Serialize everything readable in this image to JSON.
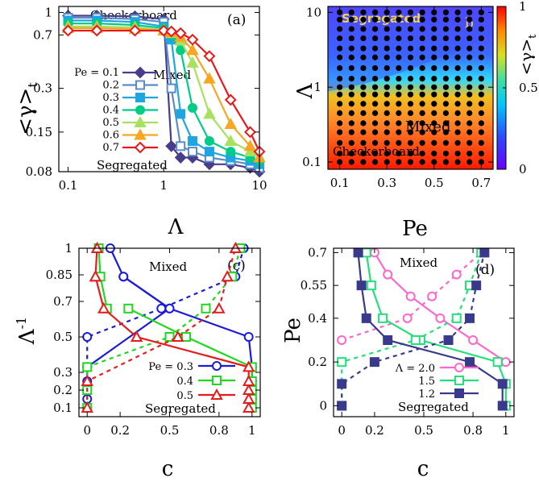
{
  "chart_data": [
    {
      "id": "a",
      "type": "line",
      "panel_label": "(a)",
      "xscale": "log",
      "yscale": "log",
      "xlim": [
        0.08,
        10
      ],
      "ylim": [
        0.08,
        1.1
      ],
      "xlabel": "Λ",
      "ylabel": "<γ>t",
      "xticks": [
        {
          "v": 0.1,
          "t": "0.1"
        },
        {
          "v": 1,
          "t": "1"
        },
        {
          "v": 10,
          "t": "10"
        }
      ],
      "yticks": [
        {
          "v": 1,
          "t": "1"
        },
        {
          "v": 0.7,
          "t": "0.7"
        },
        {
          "v": 0.3,
          "t": "0.3"
        },
        {
          "v": 0.15,
          "t": "0.15"
        },
        {
          "v": 0.08,
          "t": "0.08"
        }
      ],
      "annotations": [
        "Checkerboard",
        "Mixed",
        "Segregated"
      ],
      "x": [
        0.1,
        0.2,
        0.5,
        1.0,
        1.2,
        1.5,
        2.0,
        3.0,
        5.0,
        8.0,
        10.0
      ],
      "series": [
        {
          "name": "Pe = 0.1",
          "color": "#483d8b",
          "marker": "diamond",
          "fill": true,
          "values": [
            0.95,
            0.95,
            0.94,
            0.9,
            0.12,
            0.1,
            0.1,
            0.09,
            0.09,
            0.085,
            0.08
          ]
        },
        {
          "name": "0.2",
          "color": "#5b8cc8",
          "marker": "square",
          "fill": false,
          "values": [
            0.92,
            0.92,
            0.9,
            0.86,
            0.3,
            0.12,
            0.11,
            0.1,
            0.095,
            0.09,
            0.085
          ]
        },
        {
          "name": "0.3",
          "color": "#1fa5e0",
          "marker": "square",
          "fill": true,
          "values": [
            0.88,
            0.88,
            0.86,
            0.8,
            0.65,
            0.2,
            0.13,
            0.11,
            0.1,
            0.095,
            0.09
          ]
        },
        {
          "name": "0.4",
          "color": "#00cc88",
          "marker": "circle",
          "fill": true,
          "values": [
            0.84,
            0.84,
            0.82,
            0.78,
            0.7,
            0.55,
            0.22,
            0.13,
            0.11,
            0.1,
            0.095
          ]
        },
        {
          "name": "0.5",
          "color": "#a8e060",
          "marker": "triangle",
          "fill": true,
          "values": [
            0.8,
            0.8,
            0.79,
            0.76,
            0.72,
            0.64,
            0.45,
            0.2,
            0.13,
            0.11,
            0.1
          ]
        },
        {
          "name": "0.6",
          "color": "#f5a623",
          "marker": "triangle",
          "fill": true,
          "values": [
            0.78,
            0.78,
            0.77,
            0.75,
            0.73,
            0.68,
            0.55,
            0.35,
            0.17,
            0.12,
            0.1
          ]
        },
        {
          "name": "0.7",
          "color": "#e8191b",
          "marker": "diamond",
          "fill": false,
          "values": [
            0.75,
            0.75,
            0.75,
            0.75,
            0.74,
            0.72,
            0.65,
            0.5,
            0.25,
            0.15,
            0.11
          ]
        }
      ]
    },
    {
      "id": "b",
      "type": "heatmap",
      "panel_label": "b",
      "xscale": "linear",
      "yscale": "log",
      "xlim": [
        0.05,
        0.75
      ],
      "ylim": [
        0.08,
        12
      ],
      "xlabel": "Pe",
      "ylabel": "Λ",
      "colorbar_label": "<γ>t",
      "colorbar_ticks": [
        {
          "v": 1,
          "t": "1"
        },
        {
          "v": 0.5,
          "t": "0.5"
        },
        {
          "v": 0,
          "t": "0"
        }
      ],
      "xticks": [
        {
          "v": 0.1,
          "t": "0.1"
        },
        {
          "v": 0.3,
          "t": "0.3"
        },
        {
          "v": 0.5,
          "t": "0.5"
        },
        {
          "v": 0.7,
          "t": "0.7"
        }
      ],
      "yticks": [
        {
          "v": 10,
          "t": "10"
        },
        {
          "v": 1,
          "t": "1"
        },
        {
          "v": 0.1,
          "t": "0.1"
        }
      ],
      "annotations": [
        "Segregated",
        "Mixed",
        "Checkerboard"
      ],
      "grid_pe": [
        0.1,
        0.15,
        0.2,
        0.25,
        0.3,
        0.35,
        0.4,
        0.45,
        0.5,
        0.55,
        0.6,
        0.65,
        0.7
      ],
      "grid_lambda": [
        0.1,
        0.13,
        0.18,
        0.25,
        0.33,
        0.45,
        0.6,
        0.8,
        1.0,
        1.3,
        1.8,
        2.5,
        3.3,
        4.5,
        6.0,
        8.0,
        10.0
      ]
    },
    {
      "id": "c",
      "type": "line",
      "panel_label": "(c)",
      "xscale": "linear",
      "yscale": "linear",
      "xlim": [
        -0.05,
        1.05
      ],
      "ylim": [
        0.05,
        1.0
      ],
      "xlabel": "c",
      "ylabel": "Λ-1",
      "xticks": [
        {
          "v": 0,
          "t": "0"
        },
        {
          "v": 0.2,
          "t": "0.2"
        },
        {
          "v": 0.5,
          "t": "0.5"
        },
        {
          "v": 0.8,
          "t": "0.8"
        },
        {
          "v": 1,
          "t": "1"
        }
      ],
      "yticks": [
        {
          "v": 1,
          "t": "1"
        },
        {
          "v": 0.85,
          "t": "0.85"
        },
        {
          "v": 0.7,
          "t": "0.7"
        },
        {
          "v": 0.5,
          "t": "0.5"
        },
        {
          "v": 0.3,
          "t": "0.3"
        },
        {
          "v": 0.2,
          "t": "0.2"
        },
        {
          "v": 0.1,
          "t": "0.1"
        }
      ],
      "annotations": [
        "Mixed",
        "Segregated"
      ],
      "series": [
        {
          "name": "Pe = 0.3",
          "color": "#1a1ad8",
          "marker": "circle",
          "solid": [
            [
              0.0,
              0.1
            ],
            [
              0.0,
              0.15
            ],
            [
              0.0,
              0.2
            ],
            [
              0.0,
              0.25
            ],
            [
              0.0,
              0.33
            ],
            [
              0.5,
              0.66
            ],
            [
              0.22,
              0.84
            ],
            [
              0.14,
              1.0
            ]
          ],
          "solid_right": [
            [
              1.0,
              0.1
            ],
            [
              1.0,
              0.15
            ],
            [
              1.0,
              0.2
            ],
            [
              1.0,
              0.25
            ],
            [
              1.0,
              0.33
            ],
            [
              0.98,
              0.5
            ],
            [
              0.5,
              0.66
            ],
            [
              0.22,
              0.84
            ]
          ],
          "dashed": [
            [
              0.0,
              0.33
            ],
            [
              0.0,
              0.5
            ],
            [
              0.45,
              0.66
            ],
            [
              0.9,
              0.84
            ],
            [
              0.95,
              1.0
            ]
          ]
        },
        {
          "name": "0.4",
          "color": "#1fd81f",
          "marker": "square",
          "solid": [
            [
              0.12,
              0.66
            ],
            [
              0.08,
              0.84
            ],
            [
              0.07,
              1.0
            ]
          ],
          "solid_right": [
            [
              1.0,
              0.1
            ],
            [
              1.0,
              0.15
            ],
            [
              1.0,
              0.2
            ],
            [
              1.0,
              0.25
            ],
            [
              1.0,
              0.33
            ],
            [
              0.6,
              0.5
            ],
            [
              0.25,
              0.66
            ]
          ],
          "dashed": [
            [
              0.0,
              0.1
            ],
            [
              0.0,
              0.2
            ],
            [
              0.0,
              0.33
            ],
            [
              0.5,
              0.5
            ],
            [
              0.72,
              0.66
            ],
            [
              0.88,
              0.84
            ],
            [
              0.93,
              1.0
            ]
          ]
        },
        {
          "name": "0.5",
          "color": "#e51c1c",
          "marker": "triangle",
          "solid": [
            [
              0.05,
              0.84
            ],
            [
              0.06,
              1.0
            ]
          ],
          "solid_right": [
            [
              0.98,
              0.1
            ],
            [
              0.98,
              0.15
            ],
            [
              0.98,
              0.2
            ],
            [
              0.98,
              0.25
            ],
            [
              0.98,
              0.33
            ],
            [
              0.3,
              0.5
            ],
            [
              0.1,
              0.66
            ],
            [
              0.05,
              0.84
            ]
          ],
          "dashed": [
            [
              0.0,
              0.1
            ],
            [
              0.0,
              0.25
            ],
            [
              0.55,
              0.5
            ],
            [
              0.8,
              0.66
            ],
            [
              0.85,
              0.84
            ],
            [
              0.9,
              1.0
            ]
          ]
        }
      ]
    },
    {
      "id": "d",
      "type": "line",
      "panel_label": "(d)",
      "xscale": "linear",
      "yscale": "linear",
      "xlim": [
        -0.05,
        1.05
      ],
      "ylim": [
        -0.05,
        0.72
      ],
      "xlabel": "c",
      "ylabel": "Pe",
      "xticks": [
        {
          "v": 0,
          "t": "0"
        },
        {
          "v": 0.2,
          "t": "0.2"
        },
        {
          "v": 0.5,
          "t": "0.5"
        },
        {
          "v": 0.8,
          "t": "0.8"
        },
        {
          "v": 1,
          "t": "1"
        }
      ],
      "yticks": [
        {
          "v": 0.7,
          "t": "0.7"
        },
        {
          "v": 0.55,
          "t": "0.55"
        },
        {
          "v": 0.4,
          "t": "0.4"
        },
        {
          "v": 0.2,
          "t": "0.2"
        },
        {
          "v": 0,
          "t": "0"
        }
      ],
      "annotations": [
        "Mixed",
        "Segregated"
      ],
      "series": [
        {
          "name": "Λ = 2.0",
          "color": "#ff66cc",
          "marker": "circle",
          "solid": [
            [
              0.2,
              0.7
            ],
            [
              0.28,
              0.6
            ],
            [
              0.42,
              0.5
            ],
            [
              0.6,
              0.4
            ],
            [
              0.8,
              0.3
            ],
            [
              1.0,
              0.2
            ]
          ],
          "dashed": [
            [
              0.0,
              0.3
            ],
            [
              0.4,
              0.4
            ],
            [
              0.55,
              0.5
            ],
            [
              0.7,
              0.6
            ],
            [
              0.85,
              0.7
            ]
          ]
        },
        {
          "name": "1.5",
          "color": "#22e07a",
          "marker": "square",
          "solid": [
            [
              0.15,
              0.7
            ],
            [
              0.18,
              0.55
            ],
            [
              0.25,
              0.4
            ],
            [
              0.48,
              0.3
            ],
            [
              0.95,
              0.2
            ],
            [
              1.0,
              0.1
            ],
            [
              1.0,
              0.0
            ]
          ],
          "dashed": [
            [
              0.0,
              0.0
            ],
            [
              0.0,
              0.2
            ],
            [
              0.45,
              0.3
            ],
            [
              0.7,
              0.4
            ],
            [
              0.78,
              0.55
            ],
            [
              0.85,
              0.7
            ]
          ]
        },
        {
          "name": "1.2",
          "color": "#3a3a8c",
          "marker": "square",
          "solid": [
            [
              0.1,
              0.7
            ],
            [
              0.12,
              0.55
            ],
            [
              0.15,
              0.4
            ],
            [
              0.28,
              0.3
            ],
            [
              0.78,
              0.2
            ],
            [
              0.98,
              0.1
            ],
            [
              0.98,
              0.0
            ]
          ],
          "dashed": [
            [
              0.0,
              0.0
            ],
            [
              0.0,
              0.1
            ],
            [
              0.2,
              0.2
            ],
            [
              0.65,
              0.3
            ],
            [
              0.78,
              0.4
            ],
            [
              0.82,
              0.55
            ],
            [
              0.87,
              0.7
            ]
          ]
        }
      ]
    }
  ]
}
